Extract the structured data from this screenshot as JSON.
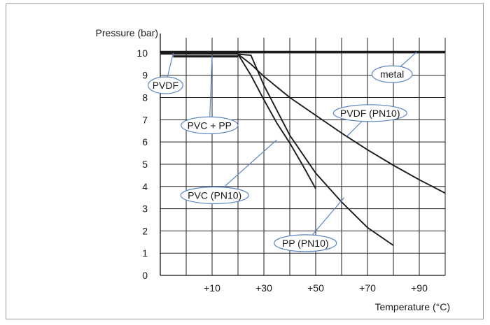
{
  "chart_data": {
    "type": "line",
    "ylabel": "Pressure (bar)",
    "xlabel": "Temperature (°C)",
    "xlim": [
      -10,
      100
    ],
    "ylim": [
      0,
      10.5
    ],
    "x_ticks": [
      10,
      30,
      50,
      70,
      90
    ],
    "x_tick_labels": [
      "+10",
      "+30",
      "+50",
      "+70",
      "+90"
    ],
    "y_ticks": [
      0,
      1,
      2,
      3,
      4,
      5,
      6,
      7,
      8,
      9,
      10
    ],
    "y_tick_labels": [
      "0",
      "1",
      "2",
      "3",
      "4",
      "5",
      "6",
      "7",
      "8",
      "9",
      "10"
    ],
    "grid": true,
    "series": [
      {
        "name": "metal",
        "color": "#1a1a1a",
        "style": "bold",
        "points": [
          [
            -10,
            10.05
          ],
          [
            100,
            10.05
          ]
        ]
      },
      {
        "name": "PVDF",
        "color": "#1a1a1a",
        "style": "bold",
        "points": [
          [
            -10,
            9.98
          ],
          [
            20,
            9.98
          ]
        ]
      },
      {
        "name": "PVC + PP",
        "color": "#1a1a1a",
        "style": "bold",
        "points": [
          [
            -5,
            9.85
          ],
          [
            20,
            9.85
          ]
        ]
      },
      {
        "name": "PVDF (PN10)",
        "color": "#1a1a1a",
        "style": "thin",
        "points": [
          [
            20,
            9.95
          ],
          [
            25,
            9.5
          ],
          [
            30,
            8.95
          ],
          [
            40,
            8.0
          ],
          [
            50,
            7.2
          ],
          [
            60,
            6.4
          ],
          [
            70,
            5.65
          ],
          [
            80,
            4.95
          ],
          [
            90,
            4.3
          ],
          [
            100,
            3.7
          ]
        ]
      },
      {
        "name": "PVC (PN10)",
        "color": "#1a1a1a",
        "style": "thin",
        "points": [
          [
            20,
            9.95
          ],
          [
            25,
            9.0
          ],
          [
            30,
            7.9
          ],
          [
            35,
            6.85
          ],
          [
            40,
            5.95
          ],
          [
            45,
            4.95
          ],
          [
            50,
            3.9
          ]
        ]
      },
      {
        "name": "PP (PN10)",
        "color": "#1a1a1a",
        "style": "thin",
        "points": [
          [
            20,
            9.95
          ],
          [
            25,
            9.9
          ],
          [
            30,
            8.55
          ],
          [
            40,
            6.3
          ],
          [
            50,
            4.6
          ],
          [
            60,
            3.3
          ],
          [
            70,
            2.15
          ],
          [
            80,
            1.35
          ]
        ]
      }
    ],
    "annotations": [
      {
        "text": "metal",
        "for": "metal",
        "x": 79.5,
        "y": 9.05,
        "tip": [
          89,
          10.05
        ]
      },
      {
        "text": "PVDF",
        "for": "PVDF",
        "x": -8,
        "y": 8.55,
        "tip": [
          -5,
          10.0
        ]
      },
      {
        "text": "PVC + PP",
        "for": "PVC + PP",
        "x": 9,
        "y": 6.75,
        "tip": [
          10,
          9.9
        ]
      },
      {
        "text": "PVDF (PN10)",
        "for": "PVDF (PN10)",
        "x": 71,
        "y": 7.3,
        "tip": [
          62,
          6.25
        ]
      },
      {
        "text": "PVC (PN10)",
        "for": "PVC (PN10)",
        "x": 11,
        "y": 3.6,
        "tip": [
          35,
          6.1
        ]
      },
      {
        "text": "PP (PN10)",
        "for": "PP (PN10)",
        "x": 46,
        "y": 1.45,
        "tip": [
          61,
          3.5
        ]
      }
    ]
  }
}
